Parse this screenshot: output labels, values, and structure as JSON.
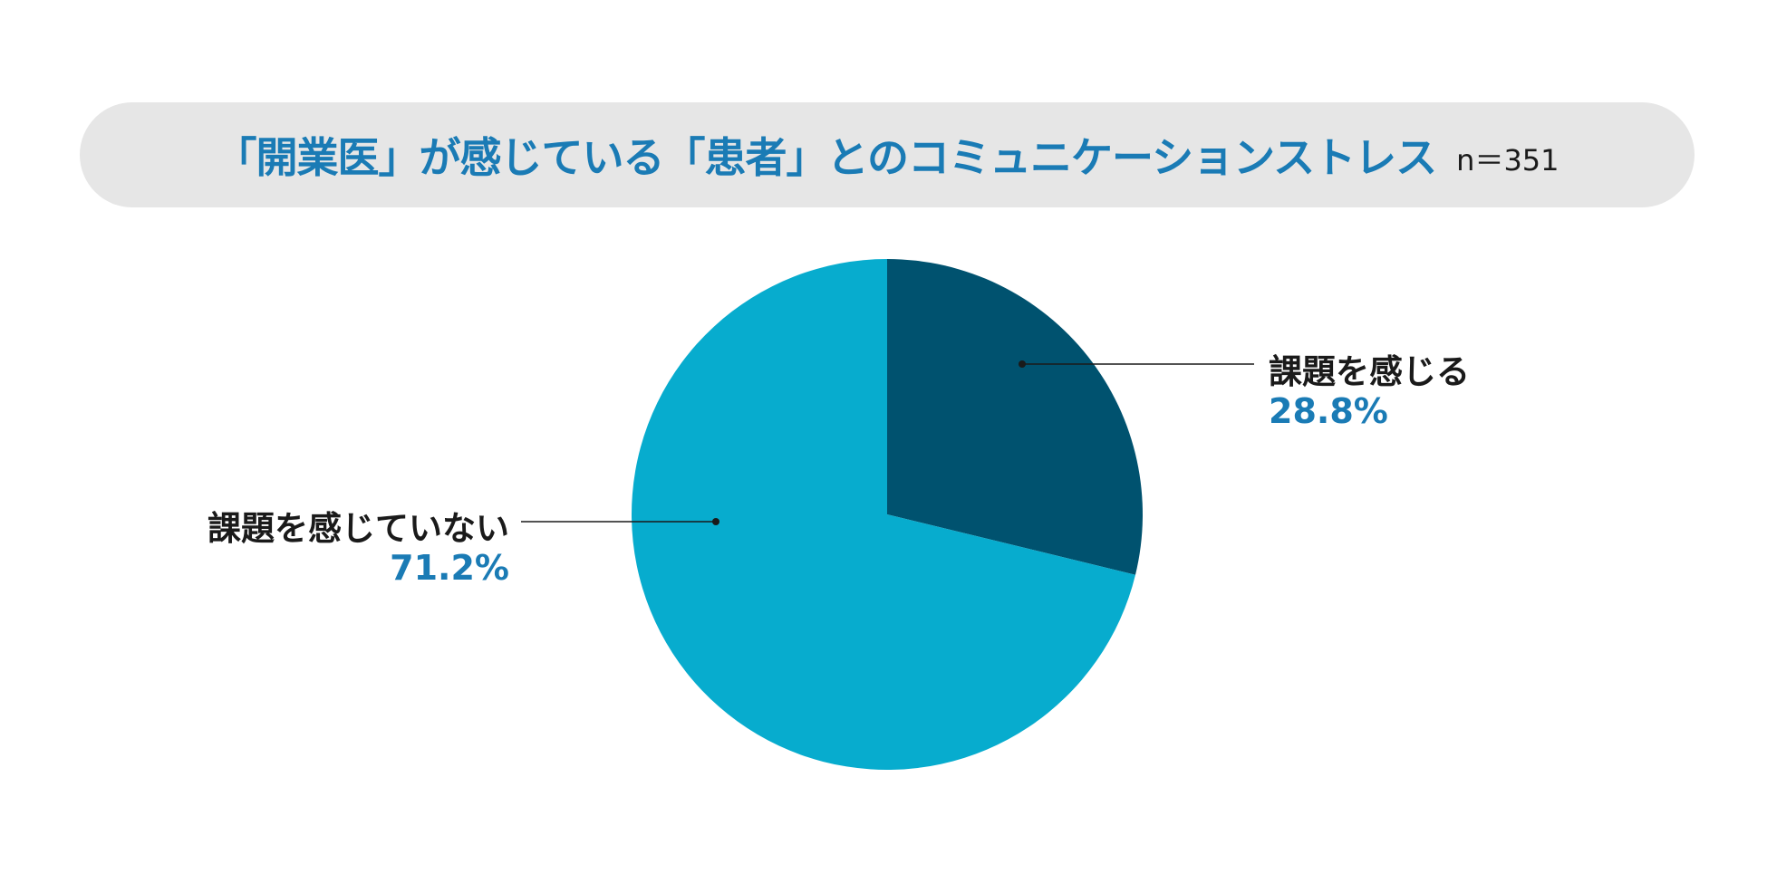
{
  "chart_data": {
    "type": "pie",
    "title": "「開業医」が感じている「患者」とのコミュニケーションストレス",
    "sample_size": "n＝351",
    "slices": [
      {
        "label": "課題を感じる",
        "value": 28.8,
        "value_label": "28.8%",
        "color": "#00526f"
      },
      {
        "label": "課題を感じていない",
        "value": 71.2,
        "value_label": "71.2%",
        "color": "#07acce"
      }
    ],
    "start_angle_deg": 0,
    "direction": "clockwise",
    "value_label_color": "#1a7bb5",
    "banner_color": "#e6e6e6"
  }
}
